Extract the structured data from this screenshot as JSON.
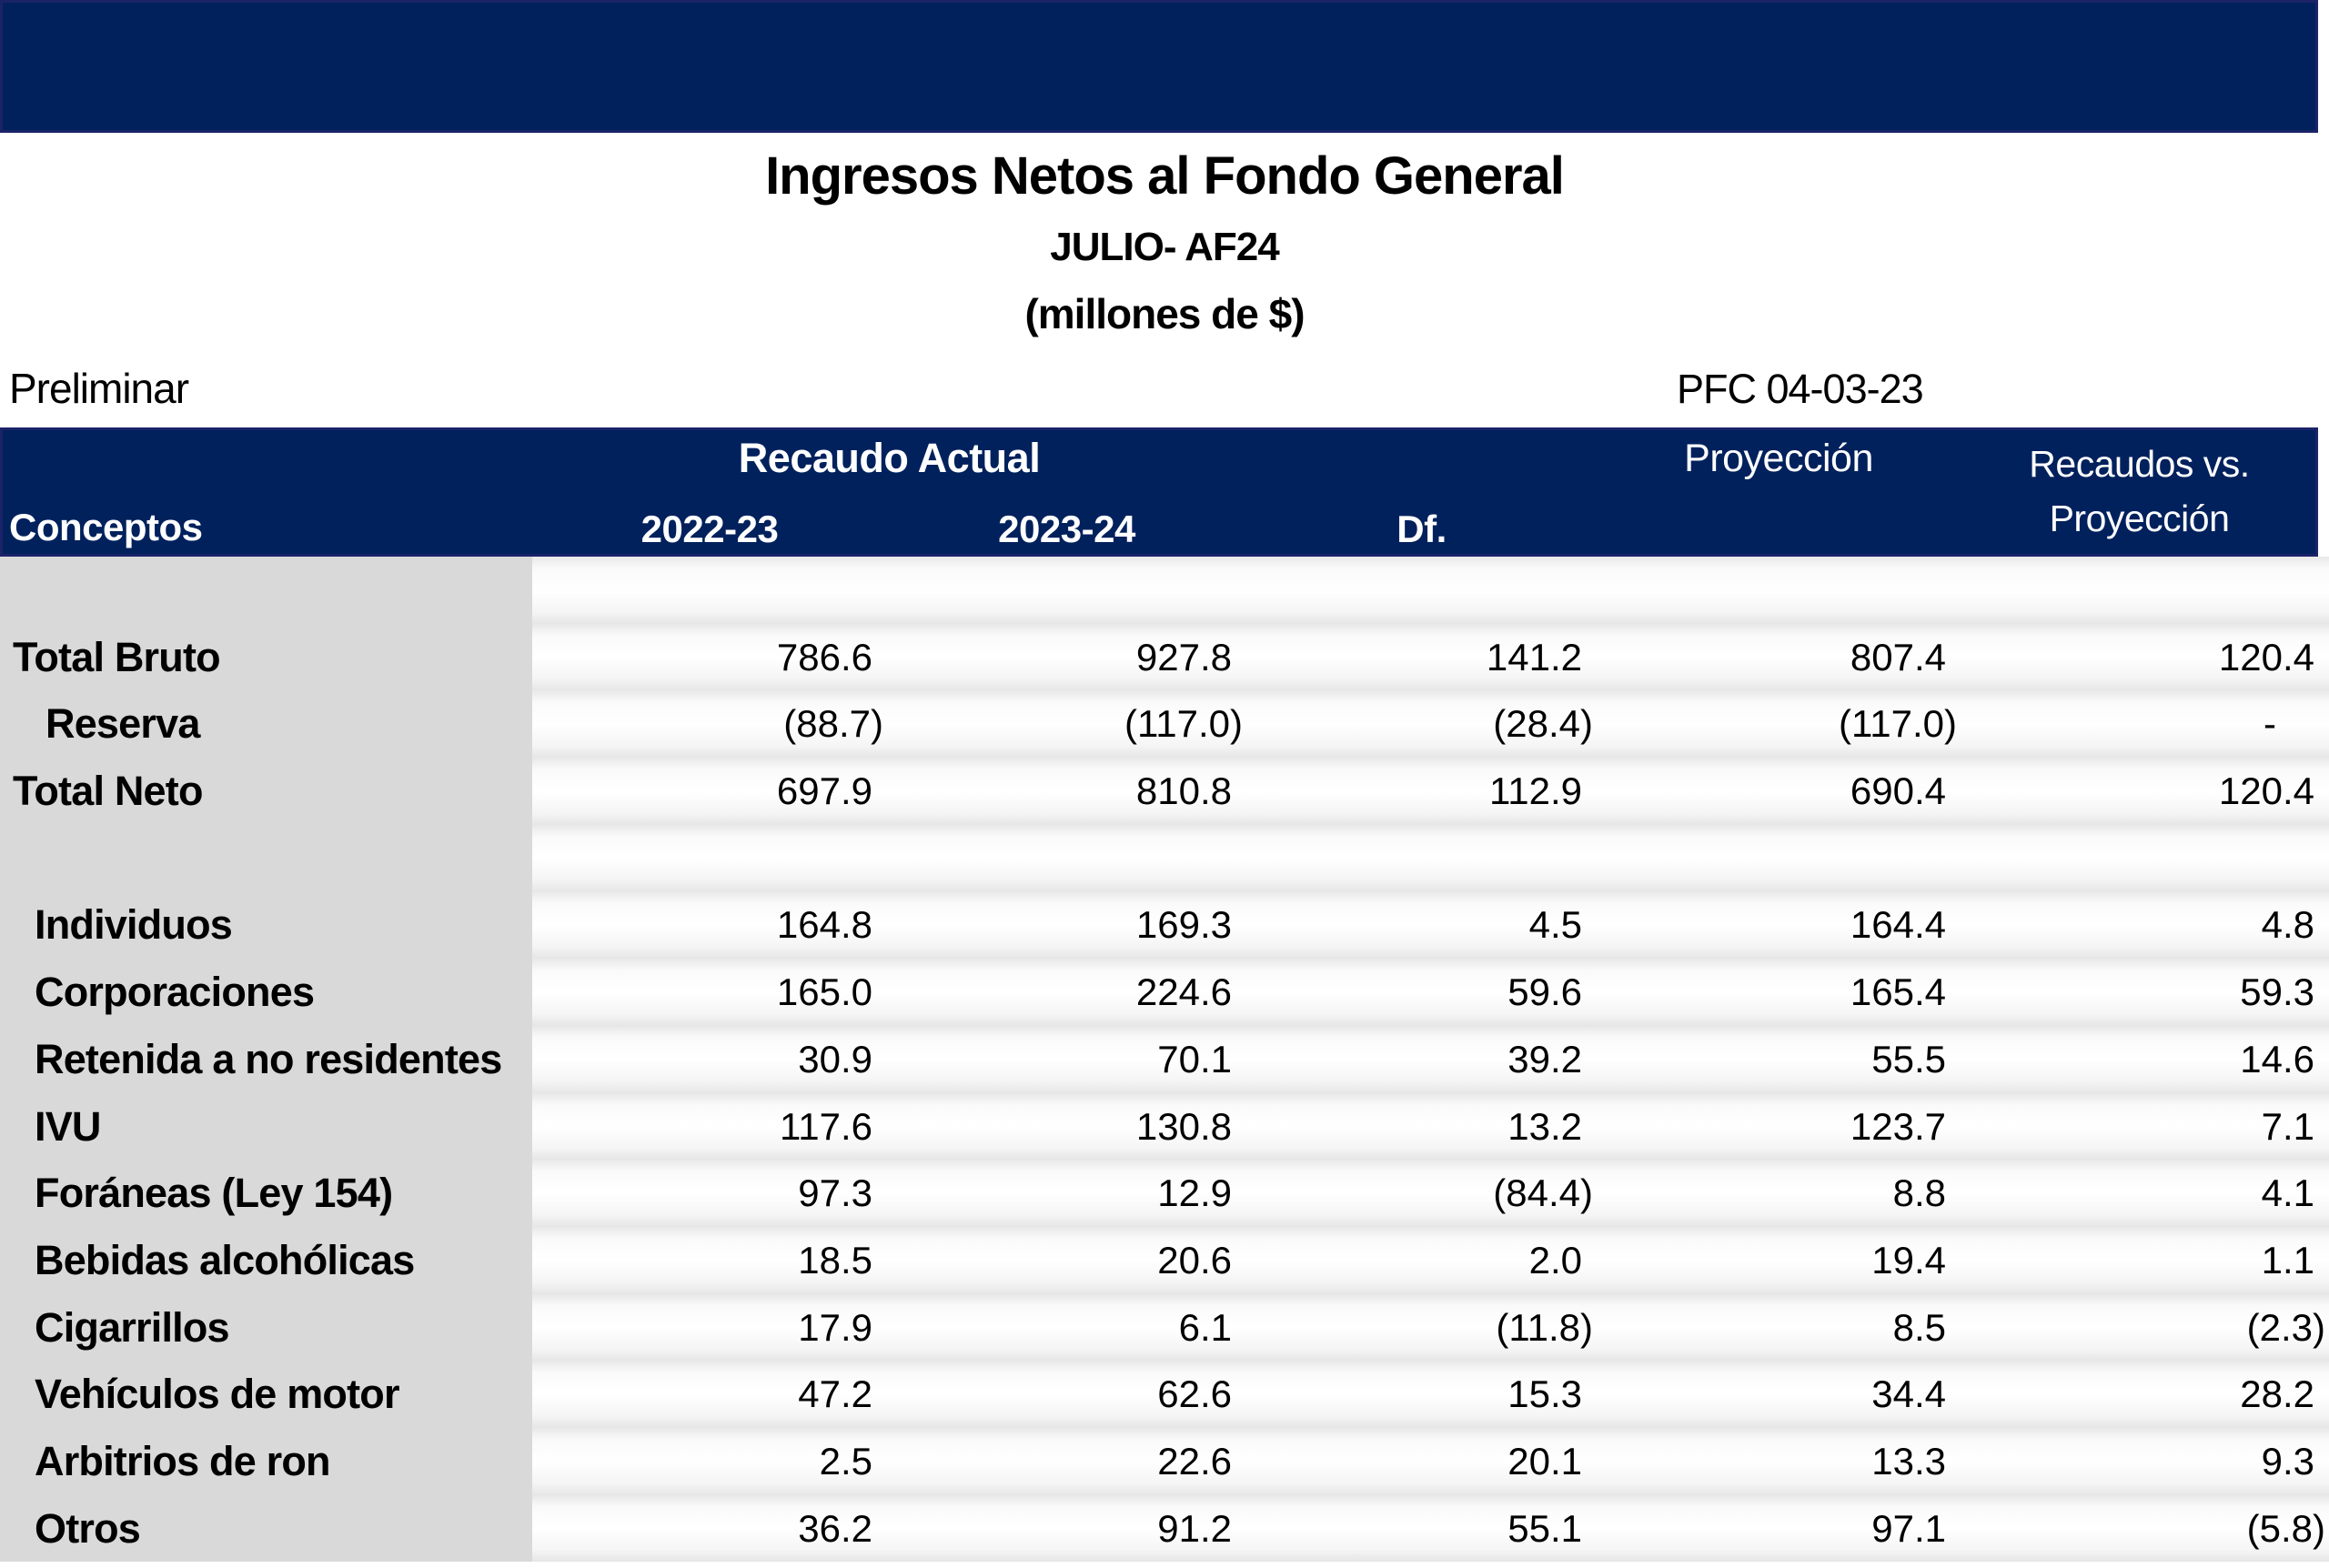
{
  "title": {
    "line1": "Ingresos Netos al Fondo General",
    "line2": "JULIO- AF24",
    "line3": "(millones de $)"
  },
  "meta": {
    "preliminary": "Preliminar",
    "reference": "PFC 04-03-23"
  },
  "table": {
    "header": {
      "group_recaudo": "Recaudo Actual",
      "group_proyeccion": "Proyección",
      "group_recaudos_vs_line1": "Recaudos vs.",
      "group_recaudos_vs_line2": "Proyección",
      "col_conceptos": "Conceptos",
      "col_2022_23": "2022-23",
      "col_2023_24": "2023-24",
      "col_df": "Df."
    },
    "rows": [
      {
        "label": "",
        "indent": 0,
        "values": [
          "",
          "",
          "",
          "",
          ""
        ]
      },
      {
        "label": "Total Bruto",
        "indent": 0,
        "values": [
          "786.6",
          "927.8",
          "141.2",
          "807.4",
          "120.4"
        ]
      },
      {
        "label": "Reserva",
        "indent": 2,
        "values": [
          "(88.7)",
          "(117.0)",
          "(28.4)",
          "(117.0)",
          "-"
        ]
      },
      {
        "label": "Total Neto",
        "indent": 0,
        "values": [
          "697.9",
          "810.8",
          "112.9",
          "690.4",
          "120.4"
        ]
      },
      {
        "label": "",
        "indent": 0,
        "values": [
          "",
          "",
          "",
          "",
          ""
        ]
      },
      {
        "label": "Individuos",
        "indent": 1,
        "values": [
          "164.8",
          "169.3",
          "4.5",
          "164.4",
          "4.8"
        ]
      },
      {
        "label": "Corporaciones",
        "indent": 1,
        "values": [
          "165.0",
          "224.6",
          "59.6",
          "165.4",
          "59.3"
        ]
      },
      {
        "label": "Retenida a no residentes",
        "indent": 1,
        "values": [
          "30.9",
          "70.1",
          "39.2",
          "55.5",
          "14.6"
        ]
      },
      {
        "label": "IVU",
        "indent": 1,
        "values": [
          "117.6",
          "130.8",
          "13.2",
          "123.7",
          "7.1"
        ]
      },
      {
        "label": "Foráneas (Ley 154)",
        "indent": 1,
        "values": [
          "97.3",
          "12.9",
          "(84.4)",
          "8.8",
          "4.1"
        ]
      },
      {
        "label": "Bebidas alcohólicas",
        "indent": 1,
        "values": [
          "18.5",
          "20.6",
          "2.0",
          "19.4",
          "1.1"
        ]
      },
      {
        "label": "Cigarrillos",
        "indent": 1,
        "values": [
          "17.9",
          "6.1",
          "(11.8)",
          "8.5",
          "(2.3)"
        ]
      },
      {
        "label": "Vehículos de motor",
        "indent": 1,
        "values": [
          "47.2",
          "62.6",
          "15.3",
          "34.4",
          "28.2"
        ]
      },
      {
        "label": "Arbitrios de ron",
        "indent": 1,
        "values": [
          "2.5",
          "22.6",
          "20.1",
          "13.3",
          "9.3"
        ]
      },
      {
        "label": "Otros",
        "indent": 1,
        "values": [
          "36.2",
          "91.2",
          "55.1",
          "97.1",
          "(5.8)"
        ]
      }
    ]
  },
  "colors": {
    "navy": "#01215D",
    "band_border": "#1B2368",
    "label_column_bg": "#D9D9D9",
    "header_text": "#FFFFFF",
    "body_text": "#000000"
  }
}
